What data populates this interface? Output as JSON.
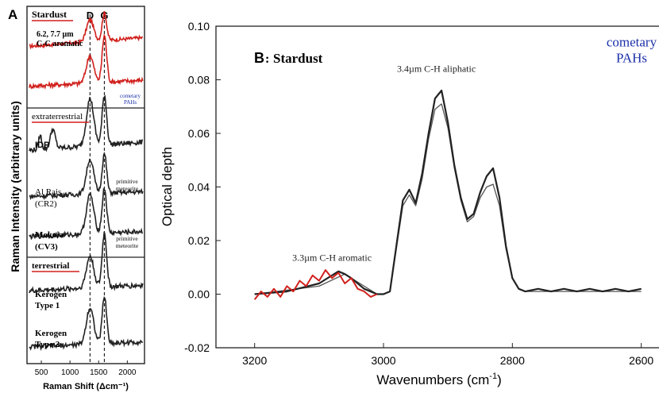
{
  "chart_data": [
    {
      "type": "line",
      "panel_letter": "A",
      "ylabel": "Raman  Intensity (arbitrary units)",
      "xlabel": "Raman Shift (Δcm⁻¹)",
      "xlim": [
        250,
        2300
      ],
      "xticks": [
        500,
        1000,
        1500,
        2000
      ],
      "band_markers": [
        {
          "label": "D",
          "x": 1350
        },
        {
          "label": "G",
          "x": 1600
        }
      ],
      "sections": [
        {
          "name": "Stardust",
          "sublabel": "6.2, 7.7 µm C-C aromatic",
          "note": "cometary PAHs"
        },
        {
          "name": "extraterrestrial"
        },
        {
          "name": "terrestrial"
        }
      ],
      "series": [
        {
          "name": "Stardust",
          "color": "#d0201c",
          "peak_D": 0.55,
          "peak_G": 0.7,
          "baseline": 0.45
        },
        {
          "name": "",
          "color": "#d0201c",
          "peak_D": 0.55,
          "peak_G": 0.95,
          "baseline": 0.25
        },
        {
          "name": "IDP",
          "color": "#222222",
          "peak_D": 0.85,
          "peak_G": 0.9,
          "baseline": 0.3
        },
        {
          "name": "Al Rais (CR2)",
          "note": "primitive meteorite",
          "color": "#222222",
          "peak_D": 0.7,
          "peak_G": 0.8,
          "baseline": 0.2
        },
        {
          "name": "Mokoia (CV3)",
          "note": "primitive meteorite",
          "color": "#222222",
          "peak_D": 0.75,
          "peak_G": 0.85,
          "baseline": 0.2
        },
        {
          "name": "Kerogen Type 1",
          "color": "#222222",
          "peak_D": 0.55,
          "peak_G": 0.95,
          "baseline": 0.2
        },
        {
          "name": "Kerogen Type 2",
          "color": "#222222",
          "peak_D": 0.7,
          "peak_G": 0.9,
          "baseline": 0.2
        }
      ]
    },
    {
      "type": "line",
      "panel_letter": "B",
      "title": "Stardust",
      "xlabel": "Wavenumbers (cm",
      "xlabel_sup": "-1",
      "xlabel_tail": ")",
      "ylabel": "Optical depth",
      "xlim": [
        3260,
        2570
      ],
      "ylim": [
        -0.02,
        0.1
      ],
      "xticks": [
        3200,
        3000,
        2800,
        2600
      ],
      "yticks": [
        -0.02,
        0.0,
        0.02,
        0.04,
        0.06,
        0.08,
        0.1
      ],
      "ytick_labels": [
        "-0.02",
        "0.00",
        "0.02",
        "0.04",
        "0.06",
        "0.08",
        "0.10"
      ],
      "annotations": [
        {
          "text": "3.4µm  C-H  aliphatic",
          "x": 2918,
          "y": 0.083
        },
        {
          "text": "3.3µm C-H  aromatic",
          "x": 3080,
          "y": 0.0125
        },
        {
          "text": "cometary",
          "x": 2615,
          "y": 0.0925
        },
        {
          "text": "PAHs",
          "x": 2615,
          "y": 0.0865
        }
      ],
      "series": [
        {
          "name": "",
          "color": "#d0201c",
          "x": [
            3200,
            3190,
            3180,
            3170,
            3160,
            3150,
            3140,
            3130,
            3120,
            3110,
            3100,
            3090,
            3080,
            3070,
            3060,
            3050,
            3040,
            3030,
            3020,
            3010
          ],
          "y": [
            -0.002,
            0.001,
            -0.001,
            0.002,
            -0.001,
            0.003,
            0.001,
            0.005,
            0.003,
            0.007,
            0.005,
            0.009,
            0.006,
            0.008,
            0.004,
            0.006,
            0.002,
            0.001,
            -0.001,
            0.0
          ]
        },
        {
          "name": "",
          "color": "#222222",
          "x": [
            3200,
            3150,
            3100,
            3070,
            3060,
            3050,
            3030,
            3010,
            3000,
            2990,
            2980,
            2970,
            2960,
            2950,
            2940,
            2930,
            2920,
            2910,
            2900,
            2890,
            2880,
            2870,
            2860,
            2850,
            2840,
            2830,
            2820,
            2810,
            2800,
            2790,
            2780,
            2760,
            2740,
            2720,
            2700,
            2680,
            2660,
            2640,
            2620,
            2600
          ],
          "y": [
            0.0,
            0.001,
            0.004,
            0.0085,
            0.0075,
            0.006,
            0.002,
            0.0,
            0.0,
            0.001,
            0.018,
            0.035,
            0.039,
            0.034,
            0.045,
            0.06,
            0.073,
            0.076,
            0.064,
            0.048,
            0.036,
            0.028,
            0.03,
            0.038,
            0.044,
            0.047,
            0.036,
            0.018,
            0.006,
            0.002,
            0.001,
            0.002,
            0.001,
            0.002,
            0.001,
            0.002,
            0.001,
            0.002,
            0.001,
            0.002
          ]
        },
        {
          "name": "",
          "color": "#555555",
          "x": [
            3200,
            3100,
            3060,
            3010,
            3000,
            2990,
            2980,
            2970,
            2960,
            2950,
            2940,
            2930,
            2920,
            2910,
            2900,
            2890,
            2880,
            2870,
            2860,
            2850,
            2840,
            2830,
            2820,
            2810,
            2800,
            2790,
            2780,
            2700,
            2600
          ],
          "y": [
            0.0,
            0.003,
            0.0075,
            0.0,
            0.0,
            0.001,
            0.017,
            0.033,
            0.037,
            0.033,
            0.043,
            0.058,
            0.069,
            0.071,
            0.062,
            0.047,
            0.035,
            0.027,
            0.029,
            0.036,
            0.04,
            0.041,
            0.033,
            0.017,
            0.006,
            0.002,
            0.001,
            0.001,
            0.001
          ]
        }
      ]
    }
  ]
}
